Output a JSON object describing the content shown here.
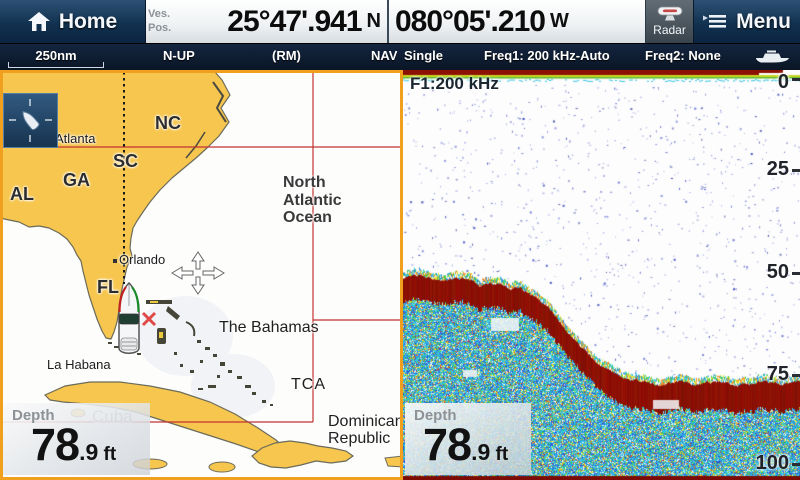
{
  "top_bar": {
    "home": {
      "label": "Home"
    },
    "vessel_position": {
      "label_top": "Ves.",
      "label_bottom": "Pos.",
      "latitude": "25°47'.941",
      "latitude_hemisphere": "N",
      "longitude": "080°05'.210",
      "longitude_hemisphere": "W"
    },
    "radar": {
      "label": "Radar"
    },
    "menu": {
      "label": "Menu"
    }
  },
  "status_bar": {
    "range": "250nm",
    "orientation": "N-UP",
    "motion_mode": "(RM)",
    "app": "NAV",
    "channel_mode": "Single",
    "freq1": "Freq1: 200 kHz-Auto",
    "freq2": "Freq2: None"
  },
  "chart_panel": {
    "labels": {
      "atlanta": "Atlanta",
      "nc": "NC",
      "sc": "SC",
      "ga": "GA",
      "al": "AL",
      "fl": "FL",
      "orlando": "Orlando",
      "ocean": [
        "North",
        "Atlantic",
        "Ocean"
      ],
      "bahamas": "The Bahamas",
      "tca": "TCA",
      "dominican_line1": "Dominican",
      "dominican_line2": "Republic",
      "la_habana": "La Habana",
      "cuba": "Cuba"
    },
    "depth_box": {
      "label": "Depth",
      "value": "78",
      "fraction": ".9",
      "unit": "ft"
    }
  },
  "sonar_panel": {
    "frequency_label": "F1:200 kHz",
    "depth_scale_ticks": [
      "0",
      "25",
      "50",
      "75",
      "100"
    ],
    "depth_range_ft": [
      0,
      100
    ],
    "bottom_profile_ft": [
      52,
      51,
      53,
      52,
      54,
      54,
      55,
      58,
      64,
      70,
      75,
      78,
      79,
      80,
      79,
      80,
      79,
      80,
      79,
      80,
      79
    ],
    "depth_box": {
      "label": "Depth",
      "value": "78",
      "fraction": ".9",
      "unit": "ft"
    }
  },
  "colors": {
    "active_pane_border": "#f0a01c",
    "land": "#f6c64e",
    "chart_line_red": "#c23333",
    "sonar_bottom_red": "#8c1104",
    "top_bar_bg": "#123251",
    "status_bar_bg": "#0b1626"
  }
}
